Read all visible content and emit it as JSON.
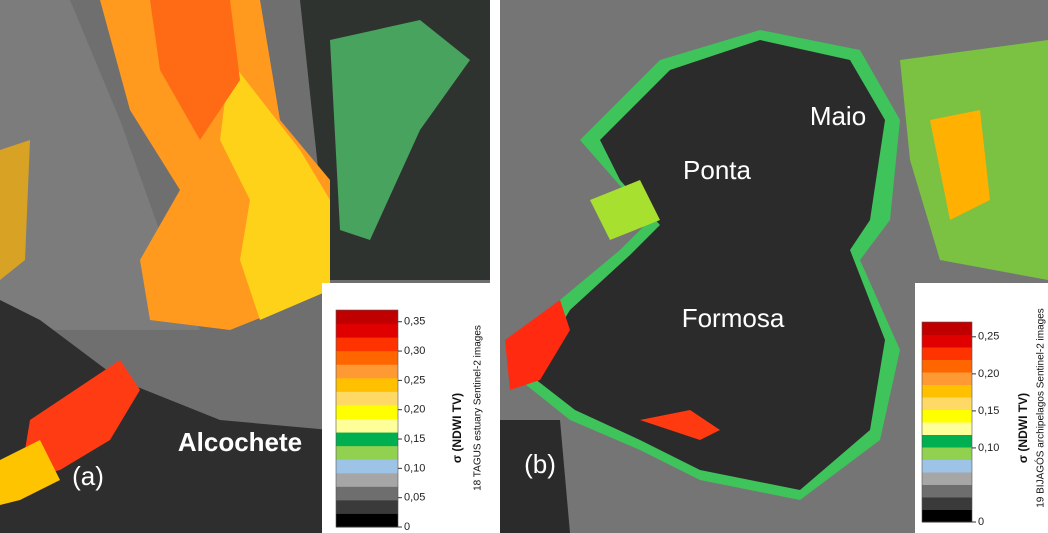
{
  "panels": [
    {
      "label": "(a)",
      "places": [
        "Alcochete"
      ],
      "colorbar": {
        "title": "σ (NDWI TV)",
        "subtitle": "18 TAGUS estuary Sentinel-2 images",
        "ylim": [
          0,
          0.37
        ],
        "ticks": [
          0,
          {
            "value": 0.05,
            "label": "0,05"
          },
          {
            "value": 0.1,
            "label": "0,10"
          },
          {
            "value": 0.15,
            "label": "0,15"
          },
          {
            "value": 0.2,
            "label": "0,20"
          },
          {
            "value": 0.25,
            "label": "0,25"
          },
          {
            "value": 0.3,
            "label": "0,30"
          },
          {
            "value": 0.35,
            "label": "0,35"
          }
        ],
        "colors": [
          "#000000",
          "#3a3a3a",
          "#6e6e6e",
          "#a6a6a6",
          "#9dc3e6",
          "#92d050",
          "#00b050",
          "#ffff99",
          "#ffff00",
          "#ffd966",
          "#ffc000",
          "#ff9933",
          "#ff6600",
          "#ff3300",
          "#e00000",
          "#c00000"
        ]
      }
    },
    {
      "label": "(b)",
      "places": [
        "Maio",
        "Ponta",
        "Formosa"
      ],
      "colorbar": {
        "title": "σ (NDWI TV)",
        "subtitle": "19 BIJAGÓS archipelagos Sentinel-2 images",
        "ylim": [
          0,
          0.27
        ],
        "ticks": [
          0,
          {
            "value": 0.1,
            "label": "0,10"
          },
          {
            "value": 0.15,
            "label": "0,15"
          },
          {
            "value": 0.2,
            "label": "0,20"
          },
          {
            "value": 0.25,
            "label": "0,25"
          }
        ],
        "colors": [
          "#000000",
          "#3a3a3a",
          "#6e6e6e",
          "#a6a6a6",
          "#9dc3e6",
          "#92d050",
          "#00b050",
          "#ffff99",
          "#ffff00",
          "#ffd966",
          "#ffc000",
          "#ff9933",
          "#ff6600",
          "#ff3300",
          "#e00000",
          "#c00000"
        ]
      }
    }
  ]
}
